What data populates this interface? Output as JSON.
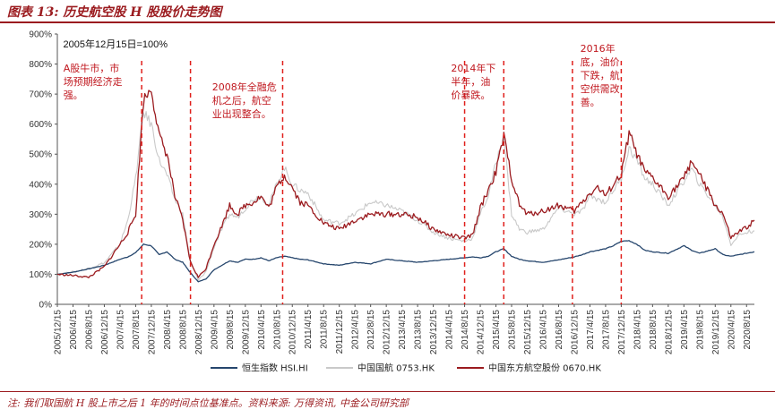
{
  "figure": {
    "title": "图表 13: 历史航空股 H 股股价走势图",
    "footnote": "注: 我们取国航 H 股上市之后 1 年的时间点位基准点。资料来源: 万得资讯, 中金公司研究部"
  },
  "colors": {
    "hsi": "#26466d",
    "ca": "#c9c9c9",
    "ce": "#9b1b1f",
    "annotation": "#e0201c"
  },
  "chart_data": {
    "type": "line",
    "base_label": "2005年12月15日=100%",
    "y_ticks": [
      "0%",
      "100%",
      "200%",
      "300%",
      "400%",
      "500%",
      "600%",
      "700%",
      "800%",
      "900%"
    ],
    "ylim": [
      0,
      900
    ],
    "x_ticks": [
      "2005/12/15",
      "2006/4/15",
      "2006/8/15",
      "2006/12/15",
      "2007/4/15",
      "2007/8/15",
      "2007/12/15",
      "2008/4/15",
      "2008/8/15",
      "2008/12/15",
      "2009/4/15",
      "2009/8/15",
      "2009/12/15",
      "2010/4/15",
      "2010/8/15",
      "2010/12/15",
      "2011/4/15",
      "2011/8/15",
      "2011/12/15",
      "2012/4/15",
      "2012/8/15",
      "2012/12/15",
      "2013/4/15",
      "2013/8/15",
      "2013/12/15",
      "2014/4/15",
      "2014/8/15",
      "2014/12/15",
      "2015/4/15",
      "2015/8/15",
      "2015/12/15",
      "2016/4/15",
      "2016/8/15",
      "2016/12/15",
      "2017/4/15",
      "2017/8/15",
      "2017/12/15",
      "2018/4/15",
      "2018/8/15",
      "2018/12/15",
      "2019/4/15",
      "2019/8/15",
      "2019/12/15",
      "2020/4/15",
      "2020/8/15"
    ],
    "x": [
      "2005/12",
      "2006/4",
      "2006/8",
      "2006/12",
      "2007/4",
      "2007/6",
      "2007/8",
      "2007/10",
      "2007/12",
      "2008/2",
      "2008/4",
      "2008/6",
      "2008/8",
      "2008/10",
      "2008/12",
      "2009/2",
      "2009/4",
      "2009/6",
      "2009/8",
      "2009/10",
      "2009/12",
      "2010/2",
      "2010/4",
      "2010/6",
      "2010/8",
      "2010/10",
      "2010/12",
      "2011/2",
      "2011/4",
      "2011/8",
      "2011/12",
      "2012/4",
      "2012/8",
      "2012/12",
      "2013/4",
      "2013/8",
      "2013/12",
      "2014/4",
      "2014/8",
      "2014/10",
      "2014/12",
      "2015/2",
      "2015/4",
      "2015/6",
      "2015/8",
      "2015/10",
      "2015/12",
      "2016/4",
      "2016/8",
      "2016/12",
      "2017/2",
      "2017/4",
      "2017/6",
      "2017/8",
      "2017/10",
      "2017/12",
      "2018/2",
      "2018/4",
      "2018/6",
      "2018/8",
      "2018/12",
      "2019/4",
      "2019/6",
      "2019/8",
      "2019/12",
      "2020/2",
      "2020/4",
      "2020/6",
      "2020/8",
      "2020/10"
    ],
    "series": [
      {
        "name": "恒生指数 HSI.HI",
        "values": [
          100,
          107,
          118,
          130,
          150,
          158,
          172,
          200,
          195,
          165,
          175,
          150,
          140,
          105,
          75,
          85,
          115,
          130,
          145,
          140,
          150,
          150,
          155,
          145,
          155,
          160,
          155,
          150,
          148,
          135,
          130,
          140,
          135,
          150,
          145,
          140,
          145,
          150,
          155,
          158,
          155,
          160,
          175,
          185,
          160,
          150,
          145,
          140,
          148,
          158,
          165,
          175,
          180,
          185,
          195,
          210,
          212,
          200,
          180,
          175,
          170,
          195,
          180,
          170,
          185,
          165,
          160,
          165,
          170,
          175
        ]
      },
      {
        "name": "中国国航 0753.HK",
        "values": [
          100,
          108,
          120,
          138,
          200,
          280,
          420,
          640,
          600,
          480,
          430,
          350,
          300,
          140,
          80,
          110,
          190,
          250,
          300,
          290,
          320,
          350,
          360,
          330,
          400,
          455,
          400,
          380,
          370,
          280,
          270,
          300,
          340,
          330,
          310,
          280,
          240,
          220,
          210,
          220,
          300,
          360,
          470,
          560,
          300,
          250,
          240,
          250,
          320,
          300,
          310,
          360,
          350,
          340,
          380,
          420,
          520,
          480,
          420,
          400,
          330,
          410,
          450,
          400,
          330,
          290,
          200,
          230,
          240,
          245
        ]
      },
      {
        "name": "中国东方航空股份 0670.HK",
        "values": [
          100,
          96,
          90,
          125,
          200,
          240,
          300,
          680,
          720,
          560,
          500,
          360,
          280,
          140,
          90,
          120,
          200,
          260,
          330,
          300,
          330,
          340,
          360,
          320,
          390,
          430,
          390,
          340,
          330,
          270,
          250,
          280,
          300,
          300,
          300,
          290,
          250,
          230,
          220,
          230,
          320,
          380,
          440,
          560,
          420,
          330,
          300,
          310,
          330,
          310,
          340,
          370,
          390,
          360,
          400,
          430,
          570,
          500,
          440,
          420,
          360,
          420,
          480,
          430,
          330,
          300,
          220,
          240,
          255,
          280
        ]
      }
    ],
    "annotations": [
      {
        "text_lines": [
          "A股牛市，市",
          "场预期经济走",
          "强。"
        ]
      },
      {
        "text_lines": [
          "2008年全融危",
          "机之后，航空",
          "业出现整合。"
        ]
      },
      {
        "text_lines": [
          "2014年下",
          "半年，油",
          "价暴跌。"
        ]
      },
      {
        "text_lines": [
          "2016年",
          "底，油价",
          "下跌，航",
          "空供需改",
          "善。"
        ]
      }
    ],
    "grid": false,
    "legend_placement": "bottom"
  }
}
